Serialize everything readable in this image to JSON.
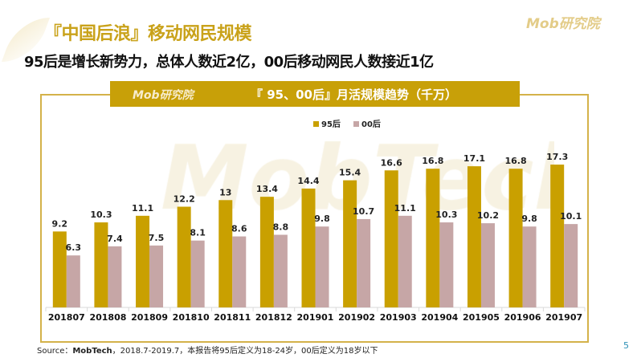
{
  "header": {
    "title": "『中国后浪』移动网民规模",
    "subtitle": "95后是增长新势力，总体人数近2亿，00后移动网民人数接近1亿",
    "logo": "Mob研究院"
  },
  "chart_data": {
    "type": "bar",
    "title": "『 95、00后』月活规模趋势（千万）",
    "categories": [
      "201807",
      "201808",
      "201809",
      "201810",
      "201811",
      "201812",
      "201901",
      "201902",
      "201903",
      "201904",
      "201905",
      "201906",
      "201907"
    ],
    "series": [
      {
        "name": "95后",
        "color": "#C9A000",
        "values": [
          9.2,
          10.3,
          11.1,
          12.2,
          13,
          13.4,
          14.4,
          15.4,
          16.6,
          16.8,
          17.1,
          16.8,
          17.3
        ]
      },
      {
        "name": "00后",
        "color": "#C6A6A6",
        "values": [
          6.3,
          7.4,
          7.5,
          8.1,
          8.6,
          8.8,
          9.8,
          10.7,
          11.1,
          10.3,
          10.2,
          9.8,
          10.1
        ]
      }
    ],
    "ylim": [
      0,
      17.5
    ],
    "grid": false,
    "legend": "top-center"
  },
  "watermark": "MobTech",
  "footer": {
    "source_prefix": "Source：",
    "source_bold": "MobTech",
    "source_rest": "，2018.7-2019.7，本报告将95后定义为18-24岁，00后定义为18岁以下",
    "page": "5"
  }
}
